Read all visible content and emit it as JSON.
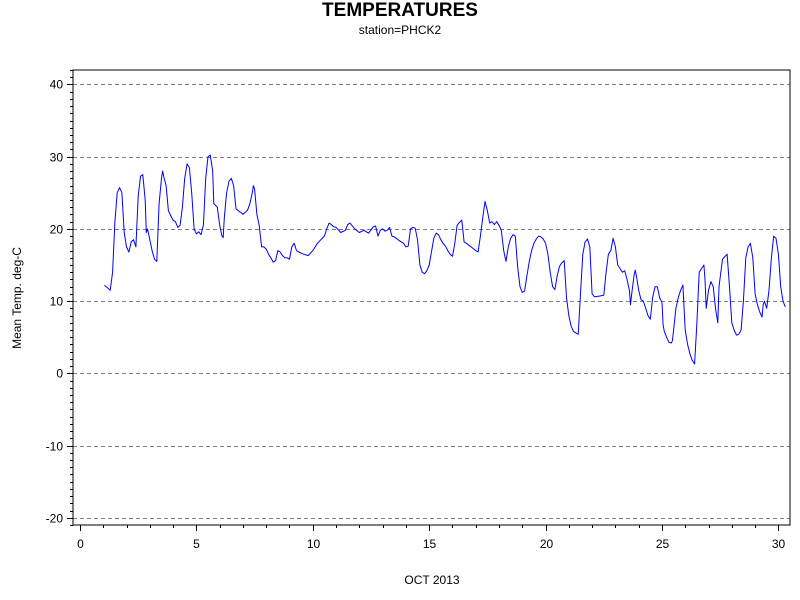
{
  "chart_data": {
    "type": "line",
    "title": "TEMPERATURES",
    "subtitle": "station=PHCK2",
    "xlabel": "OCT 2013",
    "ylabel": "Mean Temp. deg-C",
    "xlim": [
      -0.3,
      30.5
    ],
    "ylim": [
      -21,
      42
    ],
    "x_ticks": [
      0,
      5,
      10,
      15,
      20,
      25,
      30
    ],
    "y_ticks": [
      -20,
      -10,
      0,
      10,
      20,
      30,
      40
    ],
    "x_minor_step": 1,
    "y_minor_step": 1,
    "grid": "horizontal dashed at major y ticks",
    "series_color": "#0000ff",
    "series": [
      {
        "points": [
          [
            1.05,
            12.2
          ],
          [
            1.2,
            11.8
          ],
          [
            1.3,
            11.5
          ],
          [
            1.4,
            14
          ],
          [
            1.5,
            21
          ],
          [
            1.6,
            25
          ],
          [
            1.7,
            25.7
          ],
          [
            1.8,
            25
          ],
          [
            1.9,
            19.5
          ],
          [
            2.0,
            17.5
          ],
          [
            2.1,
            16.8
          ],
          [
            2.2,
            18.2
          ],
          [
            2.3,
            18.5
          ],
          [
            2.4,
            17.5
          ],
          [
            2.5,
            24.5
          ],
          [
            2.6,
            27.3
          ],
          [
            2.7,
            27.5
          ],
          [
            2.8,
            24
          ],
          [
            2.85,
            19.5
          ],
          [
            2.9,
            20
          ],
          [
            3.0,
            18.5
          ],
          [
            3.1,
            17
          ],
          [
            3.2,
            15.8
          ],
          [
            3.3,
            15.5
          ],
          [
            3.4,
            23.5
          ],
          [
            3.5,
            27
          ],
          [
            3.55,
            28
          ],
          [
            3.6,
            27.2
          ],
          [
            3.7,
            26
          ],
          [
            3.8,
            22.5
          ],
          [
            3.9,
            21.8
          ],
          [
            4.0,
            21.2
          ],
          [
            4.1,
            21
          ],
          [
            4.2,
            20.2
          ],
          [
            4.3,
            20.5
          ],
          [
            4.4,
            23
          ],
          [
            4.5,
            27
          ],
          [
            4.6,
            29
          ],
          [
            4.7,
            28.5
          ],
          [
            4.8,
            25
          ],
          [
            4.9,
            20
          ],
          [
            5.0,
            19.3
          ],
          [
            5.1,
            19.6
          ],
          [
            5.2,
            19.2
          ],
          [
            5.3,
            20.5
          ],
          [
            5.4,
            27
          ],
          [
            5.5,
            30
          ],
          [
            5.6,
            30.2
          ],
          [
            5.7,
            28
          ],
          [
            5.75,
            23.5
          ],
          [
            5.9,
            23
          ],
          [
            6.0,
            20.5
          ],
          [
            6.1,
            19
          ],
          [
            6.15,
            18.8
          ],
          [
            6.2,
            21.5
          ],
          [
            6.3,
            25
          ],
          [
            6.4,
            26.6
          ],
          [
            6.5,
            27
          ],
          [
            6.6,
            26
          ],
          [
            6.7,
            22.8
          ],
          [
            6.8,
            22.5
          ],
          [
            6.9,
            22.3
          ],
          [
            7.0,
            22
          ],
          [
            7.1,
            22.3
          ],
          [
            7.2,
            22.6
          ],
          [
            7.3,
            23.5
          ],
          [
            7.4,
            25
          ],
          [
            7.45,
            26
          ],
          [
            7.5,
            25.5
          ],
          [
            7.6,
            22
          ],
          [
            7.7,
            20.5
          ],
          [
            7.8,
            17.5
          ],
          [
            7.9,
            17.5
          ],
          [
            8.0,
            17.2
          ],
          [
            8.1,
            16.5
          ],
          [
            8.2,
            16
          ],
          [
            8.3,
            15.4
          ],
          [
            8.4,
            15.6
          ],
          [
            8.5,
            17
          ],
          [
            8.6,
            16.8
          ],
          [
            8.7,
            16.3
          ],
          [
            8.8,
            16
          ],
          [
            8.9,
            16
          ],
          [
            9.0,
            15.8
          ],
          [
            9.1,
            17.5
          ],
          [
            9.2,
            18
          ],
          [
            9.3,
            17
          ],
          [
            9.4,
            16.8
          ],
          [
            9.6,
            16.5
          ],
          [
            9.8,
            16.3
          ],
          [
            10.0,
            17
          ],
          [
            10.2,
            18
          ],
          [
            10.5,
            19
          ],
          [
            10.6,
            20
          ],
          [
            10.7,
            20.8
          ],
          [
            10.8,
            20.6
          ],
          [
            10.9,
            20.3
          ],
          [
            11.0,
            20.2
          ],
          [
            11.2,
            19.5
          ],
          [
            11.4,
            19.8
          ],
          [
            11.5,
            20.6
          ],
          [
            11.6,
            20.8
          ],
          [
            11.8,
            20
          ],
          [
            12.0,
            19.5
          ],
          [
            12.2,
            19.8
          ],
          [
            12.4,
            19.4
          ],
          [
            12.6,
            20.3
          ],
          [
            12.7,
            20.4
          ],
          [
            12.8,
            19
          ],
          [
            12.9,
            19.8
          ],
          [
            13.0,
            20
          ],
          [
            13.1,
            19.7
          ],
          [
            13.2,
            19.8
          ],
          [
            13.3,
            20.2
          ],
          [
            13.4,
            19
          ],
          [
            13.5,
            18.9
          ],
          [
            13.7,
            18.4
          ],
          [
            13.9,
            18
          ],
          [
            14.0,
            17.5
          ],
          [
            14.1,
            17.6
          ],
          [
            14.2,
            20
          ],
          [
            14.3,
            20.2
          ],
          [
            14.4,
            20.1
          ],
          [
            14.5,
            18.5
          ],
          [
            14.6,
            15
          ],
          [
            14.7,
            14
          ],
          [
            14.8,
            13.8
          ],
          [
            14.9,
            14.2
          ],
          [
            15.0,
            15
          ],
          [
            15.2,
            18.7
          ],
          [
            15.3,
            19.4
          ],
          [
            15.4,
            19.2
          ],
          [
            15.5,
            18.5
          ],
          [
            15.6,
            18
          ],
          [
            15.7,
            17.6
          ],
          [
            15.8,
            17
          ],
          [
            15.9,
            16.5
          ],
          [
            16.0,
            16.2
          ],
          [
            16.1,
            18
          ],
          [
            16.2,
            20.5
          ],
          [
            16.3,
            20.9
          ],
          [
            16.4,
            21.2
          ],
          [
            16.5,
            18.2
          ],
          [
            16.6,
            18
          ],
          [
            16.8,
            17.5
          ],
          [
            17.0,
            17
          ],
          [
            17.1,
            16.8
          ],
          [
            17.2,
            19
          ],
          [
            17.3,
            21.5
          ],
          [
            17.4,
            23.8
          ],
          [
            17.5,
            22.5
          ],
          [
            17.6,
            20.8
          ],
          [
            17.7,
            21
          ],
          [
            17.8,
            20.6
          ],
          [
            17.9,
            21
          ],
          [
            18.0,
            20.5
          ],
          [
            18.1,
            19.8
          ],
          [
            18.2,
            17
          ],
          [
            18.3,
            15.5
          ],
          [
            18.4,
            17.5
          ],
          [
            18.5,
            18.7
          ],
          [
            18.6,
            19.2
          ],
          [
            18.7,
            19
          ],
          [
            18.8,
            14.8
          ],
          [
            18.9,
            12
          ],
          [
            19.0,
            11.2
          ],
          [
            19.1,
            11.4
          ],
          [
            19.2,
            13.5
          ],
          [
            19.3,
            15.5
          ],
          [
            19.4,
            17
          ],
          [
            19.5,
            18
          ],
          [
            19.6,
            18.6
          ],
          [
            19.7,
            19
          ],
          [
            19.8,
            18.9
          ],
          [
            19.9,
            18.6
          ],
          [
            20.0,
            18
          ],
          [
            20.1,
            16.5
          ],
          [
            20.2,
            14
          ],
          [
            20.3,
            12
          ],
          [
            20.4,
            11.6
          ],
          [
            20.5,
            13.5
          ],
          [
            20.6,
            14.8
          ],
          [
            20.7,
            15.3
          ],
          [
            20.8,
            15.6
          ],
          [
            20.9,
            10.5
          ],
          [
            21.0,
            8
          ],
          [
            21.1,
            6.5
          ],
          [
            21.2,
            5.8
          ],
          [
            21.3,
            5.6
          ],
          [
            21.4,
            5.4
          ],
          [
            21.5,
            11
          ],
          [
            21.6,
            16.5
          ],
          [
            21.7,
            18.2
          ],
          [
            21.8,
            18.6
          ],
          [
            21.9,
            17.5
          ],
          [
            22.0,
            11
          ],
          [
            22.1,
            10.6
          ],
          [
            22.3,
            10.7
          ],
          [
            22.5,
            10.8
          ],
          [
            22.6,
            14
          ],
          [
            22.7,
            16.5
          ],
          [
            22.8,
            17
          ],
          [
            22.9,
            18.7
          ],
          [
            23.0,
            17.5
          ],
          [
            23.1,
            15
          ],
          [
            23.2,
            14.5
          ],
          [
            23.3,
            14
          ],
          [
            23.4,
            14.2
          ],
          [
            23.5,
            13
          ],
          [
            23.6,
            11.5
          ],
          [
            23.65,
            9.5
          ],
          [
            23.7,
            11
          ],
          [
            23.8,
            13.5
          ],
          [
            23.85,
            14.3
          ],
          [
            23.9,
            13.5
          ],
          [
            24.0,
            11.5
          ],
          [
            24.1,
            10.2
          ],
          [
            24.2,
            10
          ],
          [
            24.3,
            9
          ],
          [
            24.4,
            8
          ],
          [
            24.5,
            7.5
          ],
          [
            24.6,
            10.5
          ],
          [
            24.7,
            12
          ],
          [
            24.8,
            12
          ],
          [
            24.9,
            10.5
          ],
          [
            25.0,
            9.8
          ],
          [
            25.05,
            6.7
          ],
          [
            25.1,
            5.8
          ],
          [
            25.2,
            5
          ],
          [
            25.3,
            4.3
          ],
          [
            25.4,
            4.2
          ],
          [
            25.45,
            4.5
          ],
          [
            25.5,
            6
          ],
          [
            25.6,
            9
          ],
          [
            25.7,
            10.5
          ],
          [
            25.8,
            11.5
          ],
          [
            25.9,
            12.2
          ],
          [
            26.0,
            6
          ],
          [
            26.1,
            4
          ],
          [
            26.2,
            2.7
          ],
          [
            26.3,
            1.8
          ],
          [
            26.4,
            1.3
          ],
          [
            26.5,
            7
          ],
          [
            26.6,
            14
          ],
          [
            26.7,
            14.5
          ],
          [
            26.8,
            15
          ],
          [
            26.85,
            13
          ],
          [
            26.9,
            9
          ],
          [
            27.0,
            11.5
          ],
          [
            27.1,
            12.7
          ],
          [
            27.2,
            12
          ],
          [
            27.3,
            9
          ],
          [
            27.4,
            7
          ],
          [
            27.45,
            12
          ],
          [
            27.6,
            15.8
          ],
          [
            27.8,
            16.5
          ],
          [
            27.9,
            12
          ],
          [
            28.0,
            7
          ],
          [
            28.1,
            6
          ],
          [
            28.2,
            5.3
          ],
          [
            28.3,
            5.4
          ],
          [
            28.4,
            6
          ],
          [
            28.5,
            10
          ],
          [
            28.6,
            16
          ],
          [
            28.7,
            17.5
          ],
          [
            28.8,
            18
          ],
          [
            28.9,
            16
          ],
          [
            29.0,
            11
          ],
          [
            29.1,
            9.5
          ],
          [
            29.2,
            8.5
          ],
          [
            29.3,
            7.8
          ],
          [
            29.35,
            9.5
          ],
          [
            29.4,
            10
          ],
          [
            29.5,
            9
          ],
          [
            29.6,
            11.5
          ],
          [
            29.7,
            16
          ],
          [
            29.8,
            19
          ],
          [
            29.9,
            18.7
          ],
          [
            30.0,
            16.5
          ],
          [
            30.1,
            12
          ],
          [
            30.2,
            10
          ],
          [
            30.3,
            9.2
          ]
        ]
      }
    ]
  }
}
